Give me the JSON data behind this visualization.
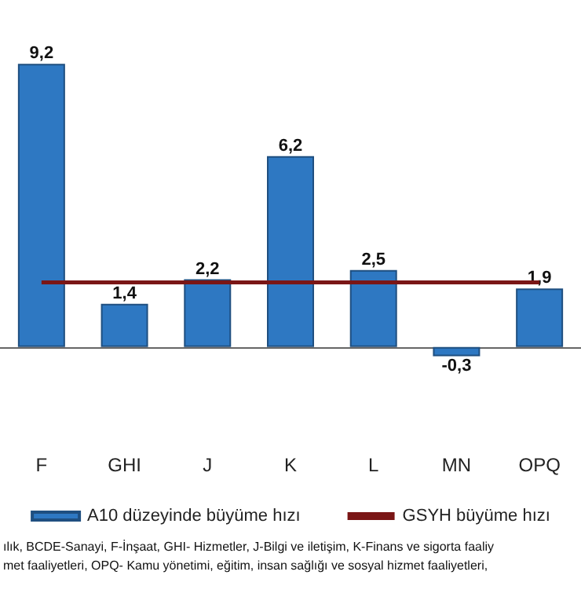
{
  "chart_data": {
    "type": "bar",
    "categories": [
      "F",
      "GHI",
      "J",
      "K",
      "L",
      "MN",
      "OPQ"
    ],
    "series": [
      {
        "name": "A10 düzeyinde büyüme hızı",
        "color": "#2e78c2",
        "values": [
          9.2,
          1.4,
          2.2,
          6.2,
          2.5,
          -0.3,
          1.9
        ],
        "value_labels": [
          "9,2",
          "1,4",
          "2,2",
          "6,2",
          "2,5",
          "-0,3",
          "1,9"
        ]
      },
      {
        "type": "line",
        "name": "GSYH büyüme hızı",
        "color": "#7a1616",
        "values": [
          2.1,
          2.1,
          2.1,
          2.1,
          2.1,
          2.1,
          2.1
        ],
        "marker": "none"
      }
    ],
    "legend": "bottom",
    "grid": false,
    "annotations": [
      "ılık, BCDE-Sanayi, F-İnşaat, GHI- Hizmetler, J-Bilgi ve iletişim, K-Finans ve sigorta faaliy",
      "met faaliyetleri, OPQ- Kamu yönetimi, eğitim, insan sağlığı ve sosyal hizmet faaliyetleri,"
    ]
  }
}
